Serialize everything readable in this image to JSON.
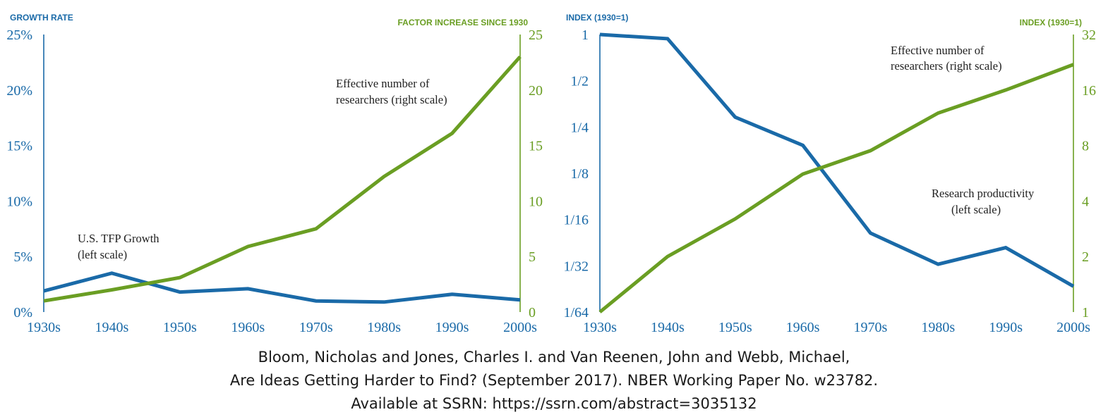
{
  "colors": {
    "blue": "#1a6aa8",
    "green": "#6a9e23"
  },
  "chart_data": [
    {
      "type": "line",
      "categories": [
        "1930s",
        "1940s",
        "1950s",
        "1960s",
        "1970s",
        "1980s",
        "1990s",
        "2000s"
      ],
      "left_axis": {
        "title": "GROWTH RATE",
        "range": [
          0,
          25
        ],
        "ticks": [
          0,
          5,
          10,
          15,
          20,
          25
        ],
        "tick_labels": [
          "0%",
          "5%",
          "10%",
          "15%",
          "20%",
          "25%"
        ]
      },
      "right_axis": {
        "title": "FACTOR INCREASE SINCE 1930",
        "range": [
          0,
          25
        ],
        "ticks": [
          0,
          5,
          10,
          15,
          20,
          25
        ],
        "tick_labels": [
          "0",
          "5",
          "10",
          "15",
          "20",
          "25"
        ]
      },
      "series": [
        {
          "axis": "left",
          "color": "#1a6aa8",
          "values": [
            1.9,
            3.5,
            1.8,
            2.1,
            1.0,
            0.9,
            1.6,
            1.1
          ]
        },
        {
          "axis": "right",
          "color": "#6a9e23",
          "values": [
            1.0,
            2.0,
            3.1,
            5.9,
            7.5,
            12.2,
            16.1,
            23.0
          ]
        }
      ],
      "annotations": [
        {
          "lines": [
            "U.S. TFP Growth",
            "(left scale)"
          ]
        },
        {
          "lines": [
            "Effective number of",
            "researchers (right scale)"
          ]
        }
      ]
    },
    {
      "type": "line",
      "categories": [
        "1930s",
        "1940s",
        "1950s",
        "1960s",
        "1970s",
        "1980s",
        "1990s",
        "2000s"
      ],
      "left_axis": {
        "title": "INDEX (1930=1)",
        "scale": "log2",
        "range": [
          0.015625,
          1
        ],
        "ticks": [
          1,
          0.5,
          0.25,
          0.125,
          0.0625,
          0.03125,
          0.015625
        ],
        "tick_labels": [
          "1",
          "1/2",
          "1/4",
          "1/8",
          "1/16",
          "1/32",
          "1/64"
        ]
      },
      "right_axis": {
        "title": "INDEX (1930=1)",
        "scale": "log2",
        "range": [
          1,
          32
        ],
        "ticks": [
          1,
          2,
          4,
          8,
          16,
          32
        ],
        "tick_labels": [
          "1",
          "2",
          "4",
          "8",
          "16",
          "32"
        ]
      },
      "series": [
        {
          "axis": "left",
          "color": "#1a6aa8",
          "values": [
            1.0,
            0.94,
            0.29,
            0.19,
            0.051,
            0.032,
            0.041,
            0.023
          ]
        },
        {
          "axis": "right",
          "color": "#6a9e23",
          "values": [
            1.0,
            2.0,
            3.2,
            5.6,
            7.5,
            12.0,
            16.0,
            22.0
          ]
        }
      ],
      "annotations": [
        {
          "lines": [
            "Effective number of",
            "researchers (right scale)"
          ]
        },
        {
          "lines": [
            "Research productivity",
            "(left scale)"
          ]
        }
      ]
    }
  ],
  "citation": {
    "line1": "Bloom, Nicholas and Jones, Charles I. and Van Reenen, John and Webb, Michael,",
    "line2": "Are Ideas Getting Harder to Find? (September 2017). NBER Working Paper No. w23782.",
    "line3": "Available at SSRN: https://ssrn.com/abstract=3035132"
  }
}
